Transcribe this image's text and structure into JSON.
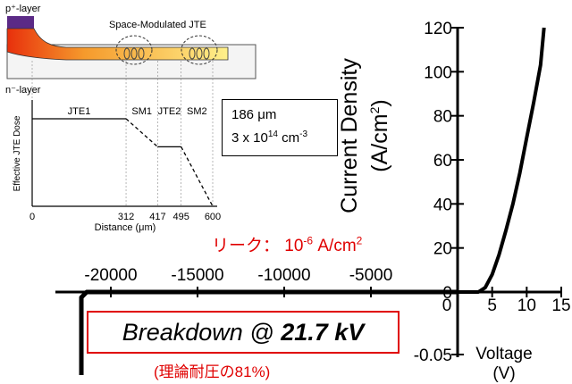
{
  "chart_data": {
    "type": "line",
    "xlabel_line1": "Voltage",
    "xlabel_line2": "(V)",
    "ylabel_line1": "Current Density",
    "ylabel_line2": "(A/cm",
    "ylabel_sup": "2",
    "ylabel_close": ")",
    "x_ticks_negative": [
      "-20000",
      "-15000",
      "-10000",
      "-5000"
    ],
    "x_ticks_positive": [
      "0",
      "5",
      "10",
      "15"
    ],
    "y_ticks": [
      "120",
      "100",
      "80",
      "60",
      "40",
      "20",
      "0",
      "-0.05"
    ],
    "series": [
      {
        "forward_iv": [
          [
            0,
            0
          ],
          [
            3,
            0
          ],
          [
            4,
            2
          ],
          [
            5,
            8
          ],
          [
            6,
            17
          ],
          [
            7,
            28
          ],
          [
            8,
            40
          ],
          [
            9,
            54
          ],
          [
            10,
            70
          ],
          [
            11,
            86
          ],
          [
            12,
            103
          ],
          [
            12.5,
            120
          ]
        ]
      }
    ],
    "reverse_breakdown_voltage_v": -21700
  },
  "inset": {
    "p_layer": "p⁺-layer",
    "n_layer": "n⁻-layer",
    "jte_title": "Space-Modulated JTE",
    "y_axis_label": "Effective JTE Dose",
    "x_axis_label": "Distance (μm)",
    "x_ticks": [
      "0",
      "312",
      "417",
      "495",
      "600"
    ],
    "regions": [
      "JTE1",
      "SM1",
      "JTE2",
      "SM2"
    ],
    "profile": [
      [
        0,
        1.0
      ],
      [
        312,
        1.0
      ],
      [
        417,
        0.68
      ],
      [
        495,
        0.68
      ],
      [
        600,
        0.0
      ]
    ]
  },
  "info_box": {
    "line1": "186 μm",
    "line2_prefix": "3 x 10",
    "line2_exp": "14",
    "line2_unit": " cm",
    "line2_unit_exp": "-3"
  },
  "leakage": {
    "prefix": "リーク： 10",
    "exp": "-6",
    "suffix": " A/cm",
    "suffix_exp": "2"
  },
  "breakdown": {
    "prefix": "Breakdown @ ",
    "value": "21.7 kV",
    "note": "(理論耐圧の81%)"
  },
  "colors": {
    "accent_red": "#e00000",
    "jte_gradient_start": "#e8300c",
    "jte_gradient_end": "#fff08a",
    "p_layer": "#5b2a86"
  }
}
